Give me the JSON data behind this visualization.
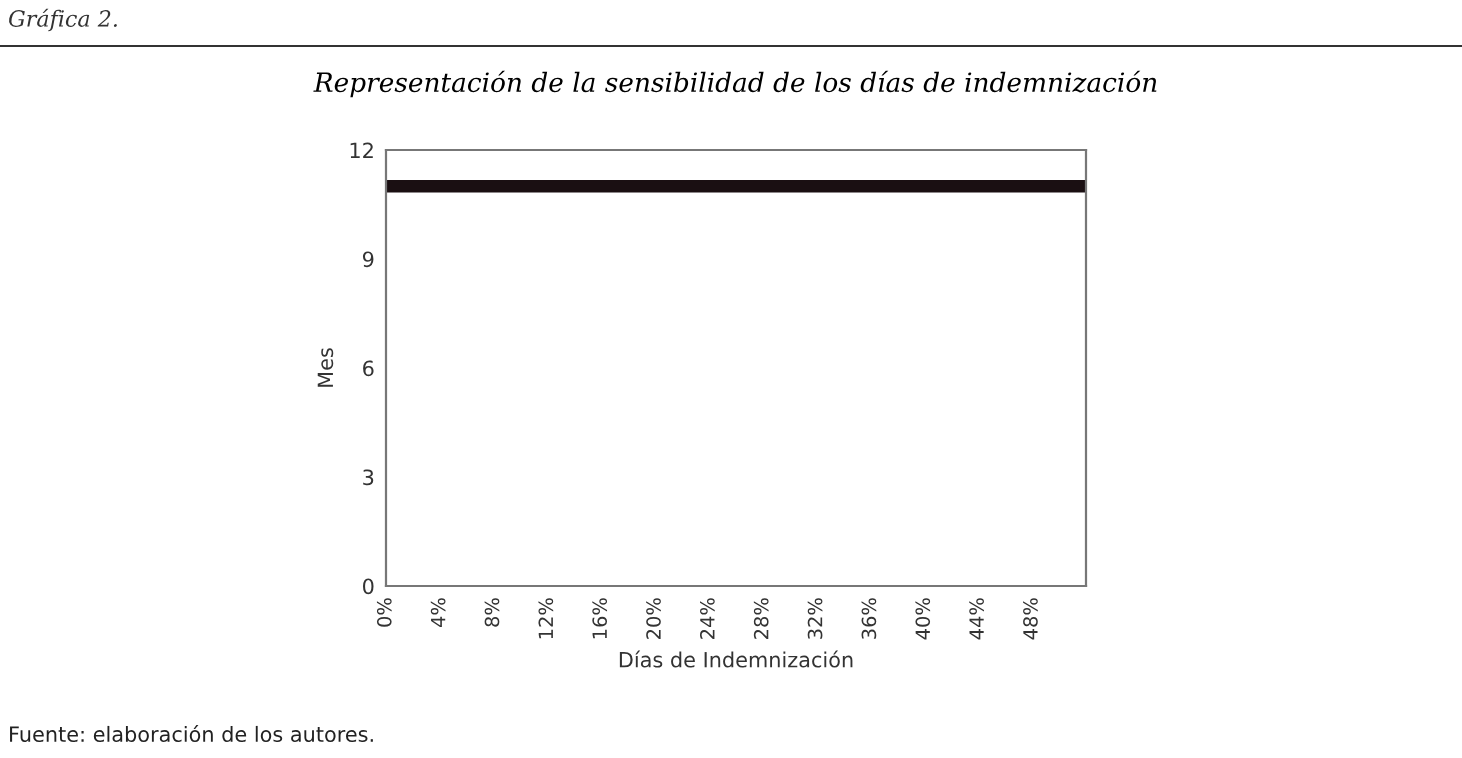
{
  "chart_data": {
    "type": "line",
    "title": "Representación de la sensibilidad de los días de indemnización",
    "xlabel": "Días de Indemnización",
    "ylabel": "Mes",
    "x": [
      0,
      52
    ],
    "series": [
      {
        "color": "#1a0f12",
        "values": [
          11,
          11
        ]
      }
    ],
    "xlim": [
      0,
      52
    ],
    "xticks": [
      {
        "value": 0,
        "label": "0%"
      },
      {
        "value": 4,
        "label": "4%"
      },
      {
        "value": 8,
        "label": "8%"
      },
      {
        "value": 12,
        "label": "12%"
      },
      {
        "value": 16,
        "label": "16%"
      },
      {
        "value": 20,
        "label": "20%"
      },
      {
        "value": 24,
        "label": "24%"
      },
      {
        "value": 28,
        "label": "28%"
      },
      {
        "value": 32,
        "label": "32%"
      },
      {
        "value": 36,
        "label": "36%"
      },
      {
        "value": 40,
        "label": "40%"
      },
      {
        "value": 44,
        "label": "44%"
      },
      {
        "value": 48,
        "label": "48%"
      }
    ],
    "ylim": [
      0,
      12
    ],
    "yticks": [
      0,
      3,
      6,
      9,
      12
    ],
    "grid": false,
    "marker": "none",
    "line_style": "solid",
    "annotations": [
      "Gráfica 2.",
      "Fuente: elaboración de los autores."
    ]
  }
}
